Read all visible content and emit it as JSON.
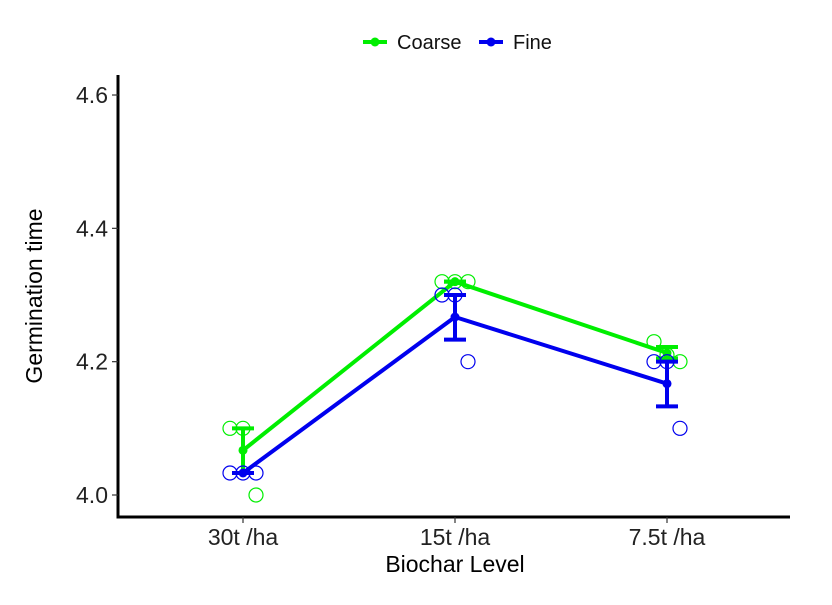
{
  "chart_data": {
    "type": "line",
    "title": "",
    "xlabel": "Biochar Level",
    "ylabel": "Germination time",
    "categories": [
      "30t /ha",
      "15t /ha",
      "7.5t /ha"
    ],
    "ylim": [
      3.985,
      4.63
    ],
    "yticks": [
      4.0,
      4.2,
      4.4,
      4.6
    ],
    "ytick_labels": [
      "4.0",
      "4.2",
      "4.4",
      "4.6"
    ],
    "grid": false,
    "legend": {
      "placement": "top-center",
      "entries": [
        "Coarse",
        "Fine"
      ]
    },
    "series": [
      {
        "name": "Coarse",
        "color": "#00ee00",
        "means": [
          4.067,
          4.32,
          4.213
        ],
        "error_low": [
          4.033,
          4.32,
          4.205
        ],
        "error_high": [
          4.1,
          4.32,
          4.222
        ],
        "points": [
          [
            4.1,
            4.1,
            4.0
          ],
          [
            4.32,
            4.32,
            4.32
          ],
          [
            4.23,
            4.21,
            4.2
          ]
        ]
      },
      {
        "name": "Fine",
        "color": "#0000ee",
        "means": [
          4.033,
          4.267,
          4.167
        ],
        "error_low": [
          4.033,
          4.233,
          4.133
        ],
        "error_high": [
          4.033,
          4.3,
          4.2
        ],
        "points": [
          [
            4.033,
            4.033,
            4.033
          ],
          [
            4.3,
            4.3,
            4.2
          ],
          [
            4.2,
            4.2,
            4.1
          ]
        ]
      }
    ]
  }
}
